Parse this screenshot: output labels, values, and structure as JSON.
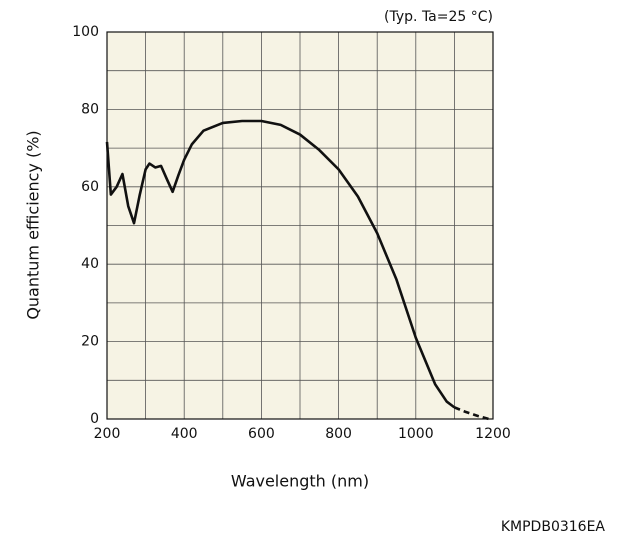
{
  "chart_data": {
    "type": "line",
    "annotation": "(Typ. Ta=25 °C)",
    "x_label": "Wavelength (nm)",
    "y_label": "Quantum efficiency (%)",
    "figure_code": "KMPDB0316EA",
    "xlim": [
      200,
      1200
    ],
    "ylim": [
      0,
      100
    ],
    "xticks": [
      200,
      400,
      600,
      800,
      1000,
      1200
    ],
    "yticks": [
      0,
      20,
      40,
      60,
      80,
      100
    ],
    "grid": true,
    "minor_grid": true,
    "background": "#f6f3e4",
    "series": [
      {
        "color": "#111111",
        "style": "solid",
        "x": [
          200,
          210,
          225,
          240,
          255,
          270,
          285,
          300,
          310,
          325,
          340,
          355,
          370,
          385,
          400,
          420,
          450,
          500,
          550,
          600,
          650,
          700,
          750,
          800,
          850,
          900,
          950,
          1000,
          1050,
          1080,
          1100
        ],
        "values": [
          71.6,
          58,
          60,
          63.3,
          55,
          50.6,
          58,
          64.5,
          66,
          65,
          65.4,
          62,
          58.7,
          63,
          67,
          71,
          74.5,
          76.5,
          77,
          77,
          76,
          73.5,
          69.5,
          64.5,
          57.5,
          48,
          36,
          21,
          9,
          4.5,
          3
        ]
      },
      {
        "color": "#111111",
        "style": "dashed",
        "x": [
          1100,
          1130,
          1160,
          1190
        ],
        "values": [
          3,
          1.8,
          0.8,
          0
        ]
      }
    ]
  }
}
